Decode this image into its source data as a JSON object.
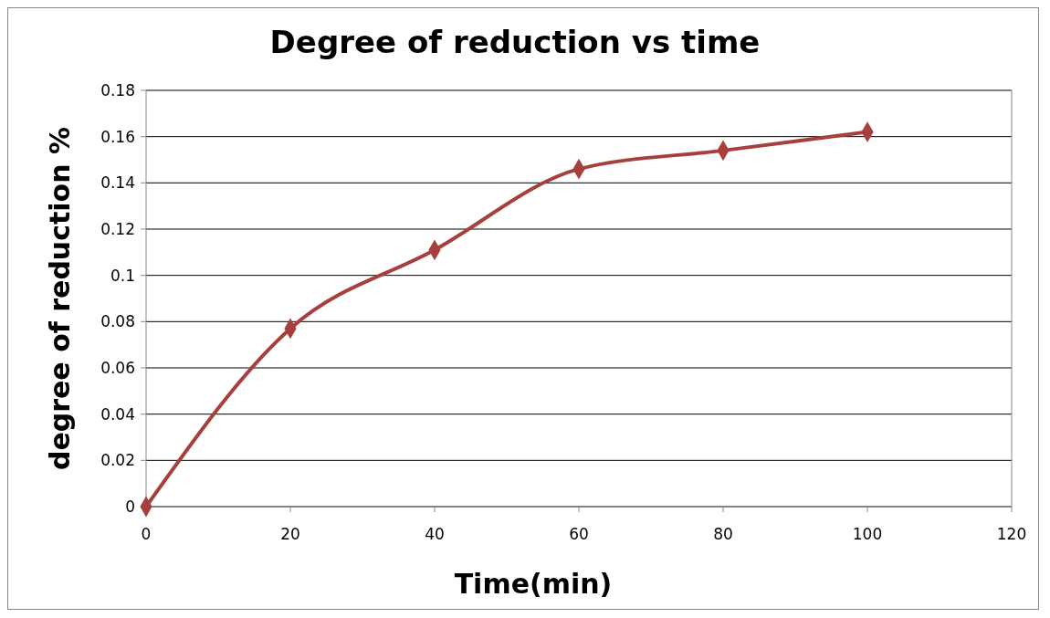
{
  "chart_data": {
    "type": "line",
    "title": "Degree of reduction vs time",
    "xlabel": "Time(min)",
    "ylabel": "degree of reduction %",
    "x": [
      0,
      20,
      40,
      60,
      80,
      100
    ],
    "series": [
      {
        "color": "#a5403d",
        "values": [
          0,
          0.077,
          0.111,
          0.146,
          0.154,
          0.162
        ]
      }
    ],
    "xlim": [
      0,
      120
    ],
    "xticks": [
      0,
      20,
      40,
      60,
      80,
      100,
      120
    ],
    "ylim": [
      0,
      0.18
    ],
    "yticks": [
      0,
      0.02,
      0.04,
      0.06,
      0.08,
      0.1,
      0.12,
      0.14,
      0.16,
      0.18
    ],
    "grid": "y",
    "marker": "diamond",
    "line_style": "solid"
  }
}
